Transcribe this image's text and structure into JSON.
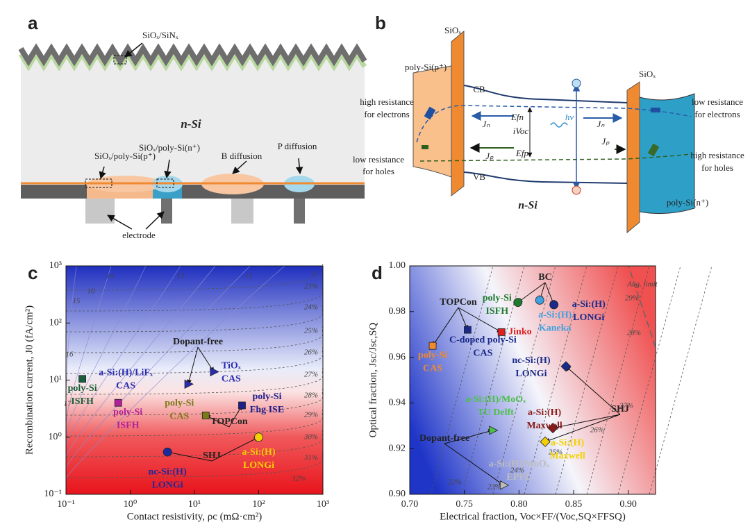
{
  "panel_a": {
    "label": "a",
    "texts": [
      "SiOₓ/SiNₓ",
      "n-Si",
      "SiOₓ/poly-Si(p⁺)",
      "SiOₓ/poly-Si(n⁺)",
      "B diffusion",
      "P diffusion",
      "electrode"
    ]
  },
  "panel_b": {
    "label": "b",
    "texts": [
      "SiOₓ",
      "poly-Si(p⁺)",
      "SiOₓ",
      "CB",
      "high resistance",
      "for electrons",
      "Jₙ",
      "Efn",
      "iVoc",
      "hν",
      "Jₙ",
      "low resistance",
      "for electrons",
      "Jₚ",
      "Efp",
      "Jₚ",
      "low resistance",
      "for holes",
      "high resistance",
      "for holes",
      "VB",
      "n-Si",
      "poly-Si(n⁺)"
    ]
  },
  "chart_data": [
    {
      "type": "scatter",
      "panel_label": "c",
      "log_scale": true,
      "x_label": "Contact resistivity, ρc (mΩ·cm²)",
      "y_label": "Recombination current, J0 (fA/cm²)",
      "xlim": [
        0.1,
        1000
      ],
      "ylim": [
        0.1,
        1000
      ],
      "xticks": [
        {
          "value": 0.1,
          "label": "10⁻¹"
        },
        {
          "value": 1,
          "label": "10⁰"
        },
        {
          "value": 10,
          "label": "10¹"
        },
        {
          "value": 100,
          "label": "10²"
        },
        {
          "value": 1000,
          "label": "10³"
        }
      ],
      "yticks": [
        {
          "value": 0.1,
          "label": "10⁻¹"
        },
        {
          "value": 1,
          "label": "10⁰"
        },
        {
          "value": 10,
          "label": "10¹"
        },
        {
          "value": 100,
          "label": "10²"
        },
        {
          "value": 1000,
          "label": "10³"
        }
      ],
      "x": [
        0.18,
        0.65,
        8,
        20,
        15,
        55,
        3.8,
        100
      ],
      "y": [
        10.5,
        4,
        8.5,
        14,
        2.4,
        3.6,
        0.55,
        1.0
      ],
      "labels": [
        [
          "poly-Si",
          "ISFH"
        ],
        [
          "poly-Si",
          "ISFH"
        ],
        [
          "a-Si:(H)/LiFₓ",
          "CAS"
        ],
        [
          "TiOₓ",
          "CAS"
        ],
        [
          "poly-Si",
          "CAS"
        ],
        [
          "poly-Si",
          "Fhg ISE"
        ],
        [
          "nc-Si:(H)",
          "LONGi"
        ],
        [
          "a-Si:(H)",
          "LONGi"
        ]
      ],
      "colors": [
        "#1b5e3b",
        "#b0209a",
        "#2b2bb0",
        "#2b2bb0",
        "#7a7a18",
        "#1d1d8c",
        "#1d2a9c",
        "#f5d000"
      ],
      "markers": [
        "square",
        "square",
        "triangle",
        "triangle",
        "square",
        "square",
        "circle",
        "circle"
      ],
      "group_labels": [
        "Dopant-free",
        "TOPCon",
        "SHJ"
      ],
      "contour_labels": [
        "23%",
        "24%",
        "25%",
        "26%",
        "27%",
        "28%",
        "29%",
        "30%",
        "31%",
        "32%",
        "10",
        "11",
        "12",
        "13",
        "14",
        "15",
        "16",
        "17"
      ]
    },
    {
      "type": "scatter",
      "panel_label": "d",
      "log_scale": false,
      "x_label": "Electrical fraction, Voc×FF/(Voc,SQ×FFSQ)",
      "y_label": "Optical fraction, Jsc/Jsc,SQ",
      "xlim": [
        0.7,
        0.925
      ],
      "ylim": [
        0.9,
        1.0
      ],
      "xticks": [
        {
          "value": 0.7,
          "label": "0.70"
        },
        0.75,
        {
          "value": 0.8,
          "label": "0.80"
        },
        0.85,
        {
          "value": 0.9,
          "label": "0.90"
        }
      ],
      "yticks": [
        {
          "value": 0.9,
          "label": "0.90"
        },
        0.92,
        0.94,
        0.96,
        0.98,
        {
          "value": 1.0,
          "label": "1.00"
        }
      ],
      "x": [
        0.799,
        0.819,
        0.832,
        0.753,
        0.784,
        0.721,
        0.843,
        0.831,
        0.824,
        0.776,
        0.786
      ],
      "y": [
        0.984,
        0.985,
        0.983,
        0.972,
        0.971,
        0.965,
        0.956,
        0.929,
        0.923,
        0.928,
        0.904
      ],
      "labels": [
        [
          "poly-Si",
          "ISFH"
        ],
        [
          "a-Si:(H)",
          "Kaneka"
        ],
        [
          "a-Si:(H)",
          "LONGi"
        ],
        [
          "C-doped poly-Si",
          "CAS"
        ],
        [
          "Jinko"
        ],
        [
          "poly-Si",
          "CAS"
        ],
        [
          "nc-Si:(H)",
          "LONGi"
        ],
        [
          "a-Si:(H)",
          "Maxwell"
        ],
        [
          "a-Si:(H)",
          "Maxwell"
        ],
        [
          "a-Si:(H)/MoOₓ",
          "TU Delft"
        ],
        [
          "a-Si:(H)/MoOₓ",
          "EPFL"
        ]
      ],
      "colors": [
        "#1e7a2e",
        "#3fa0e0",
        "#1a2a8a",
        "#1a2a8a",
        "#e02020",
        "#f08a30",
        "#1a2a8a",
        "#8a1a1a",
        "#f5d000",
        "#4cc04c",
        "#bdbdbd"
      ],
      "markers": [
        "circle",
        "circle",
        "circle",
        "square",
        "square",
        "square",
        "diamond",
        "diamond",
        "diamond",
        "triangle",
        "triangle"
      ],
      "group_labels": [
        "BC",
        "TOPCon",
        "SHJ",
        "Dopant-free"
      ],
      "contour_labels": [
        "22%",
        "23%",
        "24%",
        "25%",
        "26%",
        "27%",
        "28%",
        "29%",
        "Aug. limit"
      ]
    }
  ]
}
